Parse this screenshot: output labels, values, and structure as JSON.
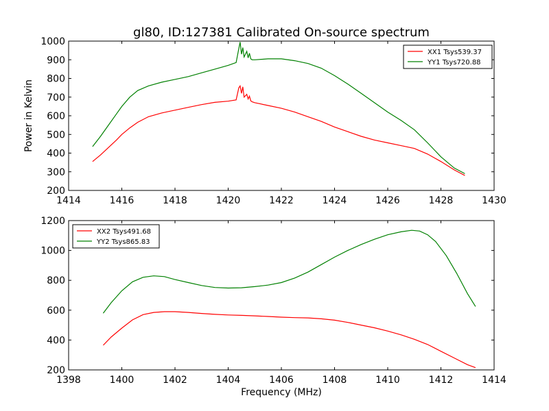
{
  "chart_data": [
    {
      "type": "line",
      "title": "gl80, ID:127381 Calibrated On-source spectrum",
      "xlabel": "",
      "ylabel": "Power in Kelvin",
      "xlim": [
        1414,
        1430
      ],
      "ylim": [
        200,
        1000
      ],
      "xticks": [
        "1414",
        "1416",
        "1418",
        "1420",
        "1422",
        "1424",
        "1426",
        "1428",
        "1430"
      ],
      "yticks": [
        "200",
        "300",
        "400",
        "500",
        "600",
        "700",
        "800",
        "900",
        "1000"
      ],
      "grid": false,
      "legend_position": "top-right",
      "series": [
        {
          "name": "XX1 Tsys539.37",
          "color": "#ff0000",
          "x": [
            1414.9,
            1415.2,
            1415.5,
            1415.8,
            1416.0,
            1416.3,
            1416.6,
            1417.0,
            1417.5,
            1418.0,
            1418.5,
            1419.0,
            1419.5,
            1420.0,
            1420.3,
            1420.4,
            1420.45,
            1420.5,
            1420.55,
            1420.6,
            1420.7,
            1420.75,
            1420.8,
            1420.85,
            1420.9,
            1421.0,
            1421.5,
            1422.0,
            1422.5,
            1423.0,
            1423.5,
            1424.0,
            1424.5,
            1425.0,
            1425.5,
            1426.0,
            1426.5,
            1427.0,
            1427.5,
            1428.0,
            1428.5,
            1428.9
          ],
          "values": [
            355,
            390,
            430,
            470,
            500,
            535,
            565,
            595,
            615,
            630,
            645,
            660,
            672,
            678,
            685,
            750,
            760,
            720,
            755,
            700,
            715,
            690,
            705,
            680,
            675,
            670,
            655,
            640,
            620,
            595,
            570,
            540,
            515,
            490,
            470,
            455,
            440,
            425,
            395,
            355,
            310,
            280
          ]
        },
        {
          "name": "YY1 Tsys720.88",
          "color": "#008000",
          "x": [
            1414.9,
            1415.2,
            1415.5,
            1415.8,
            1416.0,
            1416.3,
            1416.6,
            1417.0,
            1417.5,
            1418.0,
            1418.5,
            1419.0,
            1419.5,
            1420.0,
            1420.3,
            1420.4,
            1420.45,
            1420.5,
            1420.55,
            1420.6,
            1420.7,
            1420.75,
            1420.8,
            1420.85,
            1420.9,
            1421.0,
            1421.5,
            1422.0,
            1422.5,
            1423.0,
            1423.5,
            1424.0,
            1424.5,
            1425.0,
            1425.5,
            1426.0,
            1426.5,
            1427.0,
            1427.5,
            1428.0,
            1428.5,
            1428.9
          ],
          "values": [
            435,
            490,
            550,
            610,
            650,
            700,
            735,
            760,
            780,
            795,
            810,
            830,
            850,
            870,
            885,
            960,
            995,
            930,
            965,
            915,
            945,
            910,
            935,
            905,
            900,
            900,
            905,
            905,
            895,
            880,
            855,
            815,
            770,
            720,
            670,
            620,
            575,
            525,
            455,
            380,
            320,
            290
          ]
        }
      ]
    },
    {
      "type": "line",
      "title": "",
      "xlabel": "Frequency (MHz)",
      "ylabel": "",
      "xlim": [
        1398,
        1414
      ],
      "ylim": [
        200,
        1200
      ],
      "xticks": [
        "1398",
        "1400",
        "1402",
        "1404",
        "1406",
        "1408",
        "1410",
        "1412",
        "1414"
      ],
      "yticks": [
        "200",
        "400",
        "600",
        "800",
        "1000",
        "1200"
      ],
      "grid": false,
      "legend_position": "top-left",
      "series": [
        {
          "name": "XX2 Tsys491.68",
          "color": "#ff0000",
          "x": [
            1399.3,
            1399.6,
            1400.0,
            1400.4,
            1400.8,
            1401.2,
            1401.6,
            1402.0,
            1402.5,
            1403.0,
            1403.5,
            1404.0,
            1404.5,
            1405.0,
            1405.5,
            1406.0,
            1406.5,
            1407.0,
            1407.5,
            1408.0,
            1408.5,
            1409.0,
            1409.5,
            1410.0,
            1410.5,
            1411.0,
            1411.5,
            1412.0,
            1412.5,
            1413.0,
            1413.3
          ],
          "values": [
            365,
            420,
            480,
            535,
            570,
            585,
            590,
            590,
            585,
            578,
            572,
            568,
            565,
            562,
            558,
            553,
            550,
            548,
            542,
            533,
            518,
            500,
            482,
            460,
            435,
            405,
            370,
            325,
            280,
            235,
            215
          ]
        },
        {
          "name": "YY2 Tsys865.83",
          "color": "#008000",
          "x": [
            1399.3,
            1399.6,
            1400.0,
            1400.4,
            1400.8,
            1401.2,
            1401.6,
            1402.0,
            1402.5,
            1403.0,
            1403.5,
            1404.0,
            1404.5,
            1405.0,
            1405.5,
            1406.0,
            1406.5,
            1407.0,
            1407.5,
            1408.0,
            1408.5,
            1409.0,
            1409.5,
            1410.0,
            1410.5,
            1410.9,
            1411.2,
            1411.5,
            1411.8,
            1412.2,
            1412.6,
            1413.0,
            1413.3
          ],
          "values": [
            580,
            650,
            730,
            790,
            820,
            830,
            825,
            805,
            785,
            765,
            752,
            748,
            750,
            758,
            768,
            785,
            815,
            855,
            905,
            955,
            1000,
            1040,
            1075,
            1105,
            1125,
            1135,
            1130,
            1105,
            1060,
            965,
            845,
            710,
            625
          ]
        }
      ]
    }
  ]
}
